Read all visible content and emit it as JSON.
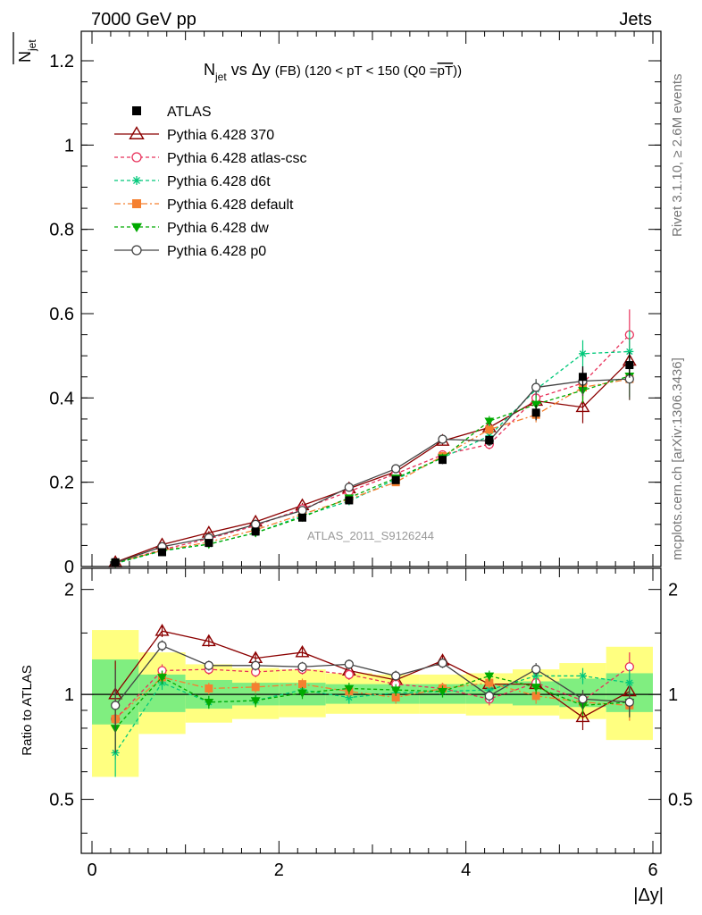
{
  "header": {
    "left": "7000 GeV pp",
    "right": "Jets"
  },
  "side_labels": {
    "rivet": "Rivet 3.1.10, ≥ 2.6M events",
    "mcplots": "mcplots.cern.ch [arXiv:1306.3436]"
  },
  "chart_data": [
    {
      "type": "line",
      "title_parts": {
        "n": "N",
        "jet": "jet",
        "vs": " vs Δy ",
        "fb": "(FB)",
        "range": " (120 < pT < 150 (Q0 =",
        "pT": "pT",
        "close": "))"
      },
      "ylabel_parts": {
        "n": "N",
        "jet": "jet"
      },
      "watermark": "ATLAS_2011_S9126244",
      "xlim": [
        0,
        6
      ],
      "ylim": [
        0,
        1.27
      ],
      "yticks": [
        {
          "v": 0,
          "label": "0"
        },
        {
          "v": 0.2,
          "label": "0.2"
        },
        {
          "v": 0.4,
          "label": "0.4"
        },
        {
          "v": 0.6,
          "label": "0.6"
        },
        {
          "v": 0.8,
          "label": "0.8"
        },
        {
          "v": 1.0,
          "label": "1"
        },
        {
          "v": 1.2,
          "label": "1.2"
        }
      ],
      "x": [
        0.25,
        0.75,
        1.25,
        1.75,
        2.25,
        2.75,
        3.25,
        3.75,
        4.25,
        4.75,
        5.25,
        5.75
      ],
      "series": [
        {
          "name": "ATLAS",
          "color": "#000000",
          "marker": "square-filled",
          "dash": "",
          "line": false,
          "values": [
            0.01,
            0.034,
            0.056,
            0.083,
            0.116,
            0.157,
            0.205,
            0.253,
            0.3,
            0.365,
            0.45,
            0.478
          ],
          "errors": [
            0.002,
            0.003,
            0.004,
            0.005,
            0.006,
            0.007,
            0.008,
            0.01,
            0.012,
            0.018,
            0.025,
            0.03
          ]
        },
        {
          "name": "Pythia 6.428 370",
          "color": "#8b0000",
          "marker": "triangle-open",
          "dash": "",
          "line": true,
          "values": [
            0.01,
            0.052,
            0.08,
            0.106,
            0.145,
            0.185,
            0.225,
            0.298,
            0.33,
            0.393,
            0.378,
            0.488
          ],
          "errors": [
            0.002,
            0.003,
            0.004,
            0.005,
            0.006,
            0.007,
            0.008,
            0.01,
            0.013,
            0.02,
            0.038,
            0.05
          ]
        },
        {
          "name": "Pythia 6.428 atlas-csc",
          "color": "#e8305a",
          "marker": "circle-open",
          "dash": "4,3",
          "line": true,
          "values": [
            0.009,
            0.04,
            0.066,
            0.097,
            0.137,
            0.178,
            0.22,
            0.265,
            0.29,
            0.4,
            0.435,
            0.55
          ],
          "errors": [
            0.002,
            0.003,
            0.004,
            0.005,
            0.006,
            0.007,
            0.008,
            0.01,
            0.012,
            0.02,
            0.035,
            0.06
          ]
        },
        {
          "name": "Pythia 6.428 d6t",
          "color": "#00c87a",
          "marker": "star",
          "dash": "4,3",
          "line": true,
          "values": [
            0.007,
            0.037,
            0.053,
            0.08,
            0.12,
            0.155,
            0.207,
            0.258,
            0.31,
            0.42,
            0.505,
            0.51
          ],
          "errors": [
            0.002,
            0.003,
            0.004,
            0.005,
            0.006,
            0.007,
            0.008,
            0.01,
            0.012,
            0.02,
            0.032,
            0.05
          ]
        },
        {
          "name": "Pythia 6.428 default",
          "color": "#f58030",
          "marker": "square-filled",
          "dash": "7,3,2,3",
          "line": true,
          "values": [
            0.009,
            0.038,
            0.058,
            0.087,
            0.124,
            0.16,
            0.2,
            0.262,
            0.325,
            0.36,
            0.425,
            0.445
          ],
          "errors": [
            0.002,
            0.003,
            0.004,
            0.005,
            0.006,
            0.007,
            0.008,
            0.01,
            0.012,
            0.018,
            0.03,
            0.05
          ]
        },
        {
          "name": "Pythia 6.428 dw",
          "color": "#00aa00",
          "marker": "triangle-down-filled",
          "dash": "4,3",
          "line": true,
          "values": [
            0.008,
            0.038,
            0.053,
            0.08,
            0.117,
            0.163,
            0.21,
            0.258,
            0.345,
            0.385,
            0.418,
            0.452
          ],
          "errors": [
            0.002,
            0.003,
            0.004,
            0.005,
            0.006,
            0.007,
            0.008,
            0.01,
            0.012,
            0.02,
            0.03,
            0.05
          ]
        },
        {
          "name": "Pythia 6.428 p0",
          "color": "#444444",
          "marker": "circle-open",
          "dash": "",
          "line": true,
          "values": [
            0.009,
            0.047,
            0.068,
            0.1,
            0.133,
            0.188,
            0.232,
            0.302,
            0.298,
            0.425,
            0.44,
            0.445
          ],
          "errors": [
            0.002,
            0.003,
            0.004,
            0.005,
            0.006,
            0.007,
            0.008,
            0.01,
            0.012,
            0.02,
            0.035,
            0.05
          ]
        }
      ]
    },
    {
      "type": "line",
      "ylabel": "Ratio to ATLAS",
      "xlabel": "|Δy|",
      "xlim": [
        0,
        6
      ],
      "ylim": [
        0.35,
        2.3
      ],
      "ylog": true,
      "yticks": [
        {
          "v": 0.5,
          "label": "0.5"
        },
        {
          "v": 1,
          "label": "1"
        },
        {
          "v": 2,
          "label": "2"
        }
      ],
      "xticks": [
        {
          "v": 0,
          "label": "0"
        },
        {
          "v": 2,
          "label": "2"
        },
        {
          "v": 4,
          "label": "4"
        },
        {
          "v": 6,
          "label": "6"
        }
      ],
      "bands": {
        "bins": [
          [
            0,
            0.5
          ],
          [
            0.5,
            1.0
          ],
          [
            1.0,
            1.5
          ],
          [
            1.5,
            2.0
          ],
          [
            2.0,
            2.5
          ],
          [
            2.5,
            3.0
          ],
          [
            3.0,
            3.5
          ],
          [
            3.5,
            4.0
          ],
          [
            4.0,
            4.5
          ],
          [
            4.5,
            5.0
          ],
          [
            5.0,
            5.5
          ],
          [
            5.5,
            6.0
          ]
        ],
        "outer_color": "#ffff80",
        "inner_color": "#80ee80",
        "outer": [
          [
            0.58,
            1.53
          ],
          [
            0.77,
            1.32
          ],
          [
            0.83,
            1.22
          ],
          [
            0.85,
            1.19
          ],
          [
            0.86,
            1.18
          ],
          [
            0.88,
            1.15
          ],
          [
            0.88,
            1.14
          ],
          [
            0.88,
            1.14
          ],
          [
            0.87,
            1.15
          ],
          [
            0.87,
            1.18
          ],
          [
            0.85,
            1.23
          ],
          [
            0.74,
            1.37
          ]
        ],
        "inner": [
          [
            0.82,
            1.26
          ],
          [
            0.89,
            1.14
          ],
          [
            0.91,
            1.1
          ],
          [
            0.93,
            1.08
          ],
          [
            0.93,
            1.08
          ],
          [
            0.94,
            1.07
          ],
          [
            0.94,
            1.07
          ],
          [
            0.94,
            1.07
          ],
          [
            0.94,
            1.07
          ],
          [
            0.93,
            1.09
          ],
          [
            0.92,
            1.11
          ],
          [
            0.89,
            1.15
          ]
        ]
      },
      "series": [
        {
          "name": "Pythia 6.428 370",
          "values": [
            1.0,
            1.52,
            1.42,
            1.27,
            1.32,
            1.17,
            1.1,
            1.25,
            1.07,
            1.07,
            0.86,
            1.02
          ],
          "errors": [
            0.25,
            0.06,
            0.05,
            0.04,
            0.04,
            0.04,
            0.04,
            0.04,
            0.05,
            0.06,
            0.07,
            0.08
          ]
        },
        {
          "name": "Pythia 6.428 atlas-csc",
          "values": [
            0.85,
            1.17,
            1.18,
            1.16,
            1.18,
            1.14,
            1.07,
            1.04,
            0.97,
            1.08,
            0.96,
            1.2
          ],
          "errors": [
            0.2,
            0.05,
            0.04,
            0.04,
            0.04,
            0.04,
            0.04,
            0.04,
            0.04,
            0.05,
            0.06,
            0.12
          ]
        },
        {
          "name": "Pythia 6.428 d6t",
          "values": [
            0.68,
            1.08,
            0.95,
            0.96,
            1.03,
            0.98,
            1.01,
            1.02,
            1.03,
            1.13,
            1.13,
            1.08
          ],
          "errors": [
            0.1,
            0.05,
            0.04,
            0.04,
            0.04,
            0.04,
            0.04,
            0.04,
            0.04,
            0.05,
            0.06,
            0.1
          ]
        },
        {
          "name": "Pythia 6.428 default",
          "values": [
            0.85,
            1.12,
            1.04,
            1.05,
            1.07,
            1.02,
            0.98,
            1.04,
            1.08,
            0.99,
            0.95,
            0.93
          ],
          "errors": [
            0.12,
            0.05,
            0.04,
            0.04,
            0.04,
            0.04,
            0.04,
            0.04,
            0.04,
            0.05,
            0.06,
            0.09
          ]
        },
        {
          "name": "Pythia 6.428 dw",
          "values": [
            0.8,
            1.12,
            0.95,
            0.96,
            1.01,
            1.04,
            1.03,
            1.02,
            1.13,
            1.05,
            0.93,
            0.95
          ],
          "errors": [
            0.12,
            0.05,
            0.04,
            0.04,
            0.04,
            0.04,
            0.04,
            0.04,
            0.04,
            0.05,
            0.06,
            0.09
          ]
        },
        {
          "name": "Pythia 6.428 p0",
          "values": [
            0.93,
            1.38,
            1.21,
            1.21,
            1.2,
            1.22,
            1.13,
            1.23,
            0.99,
            1.18,
            0.97,
            0.95
          ],
          "errors": [
            0.25,
            0.05,
            0.04,
            0.04,
            0.04,
            0.04,
            0.04,
            0.04,
            0.04,
            0.05,
            0.06,
            0.09
          ]
        }
      ]
    }
  ]
}
